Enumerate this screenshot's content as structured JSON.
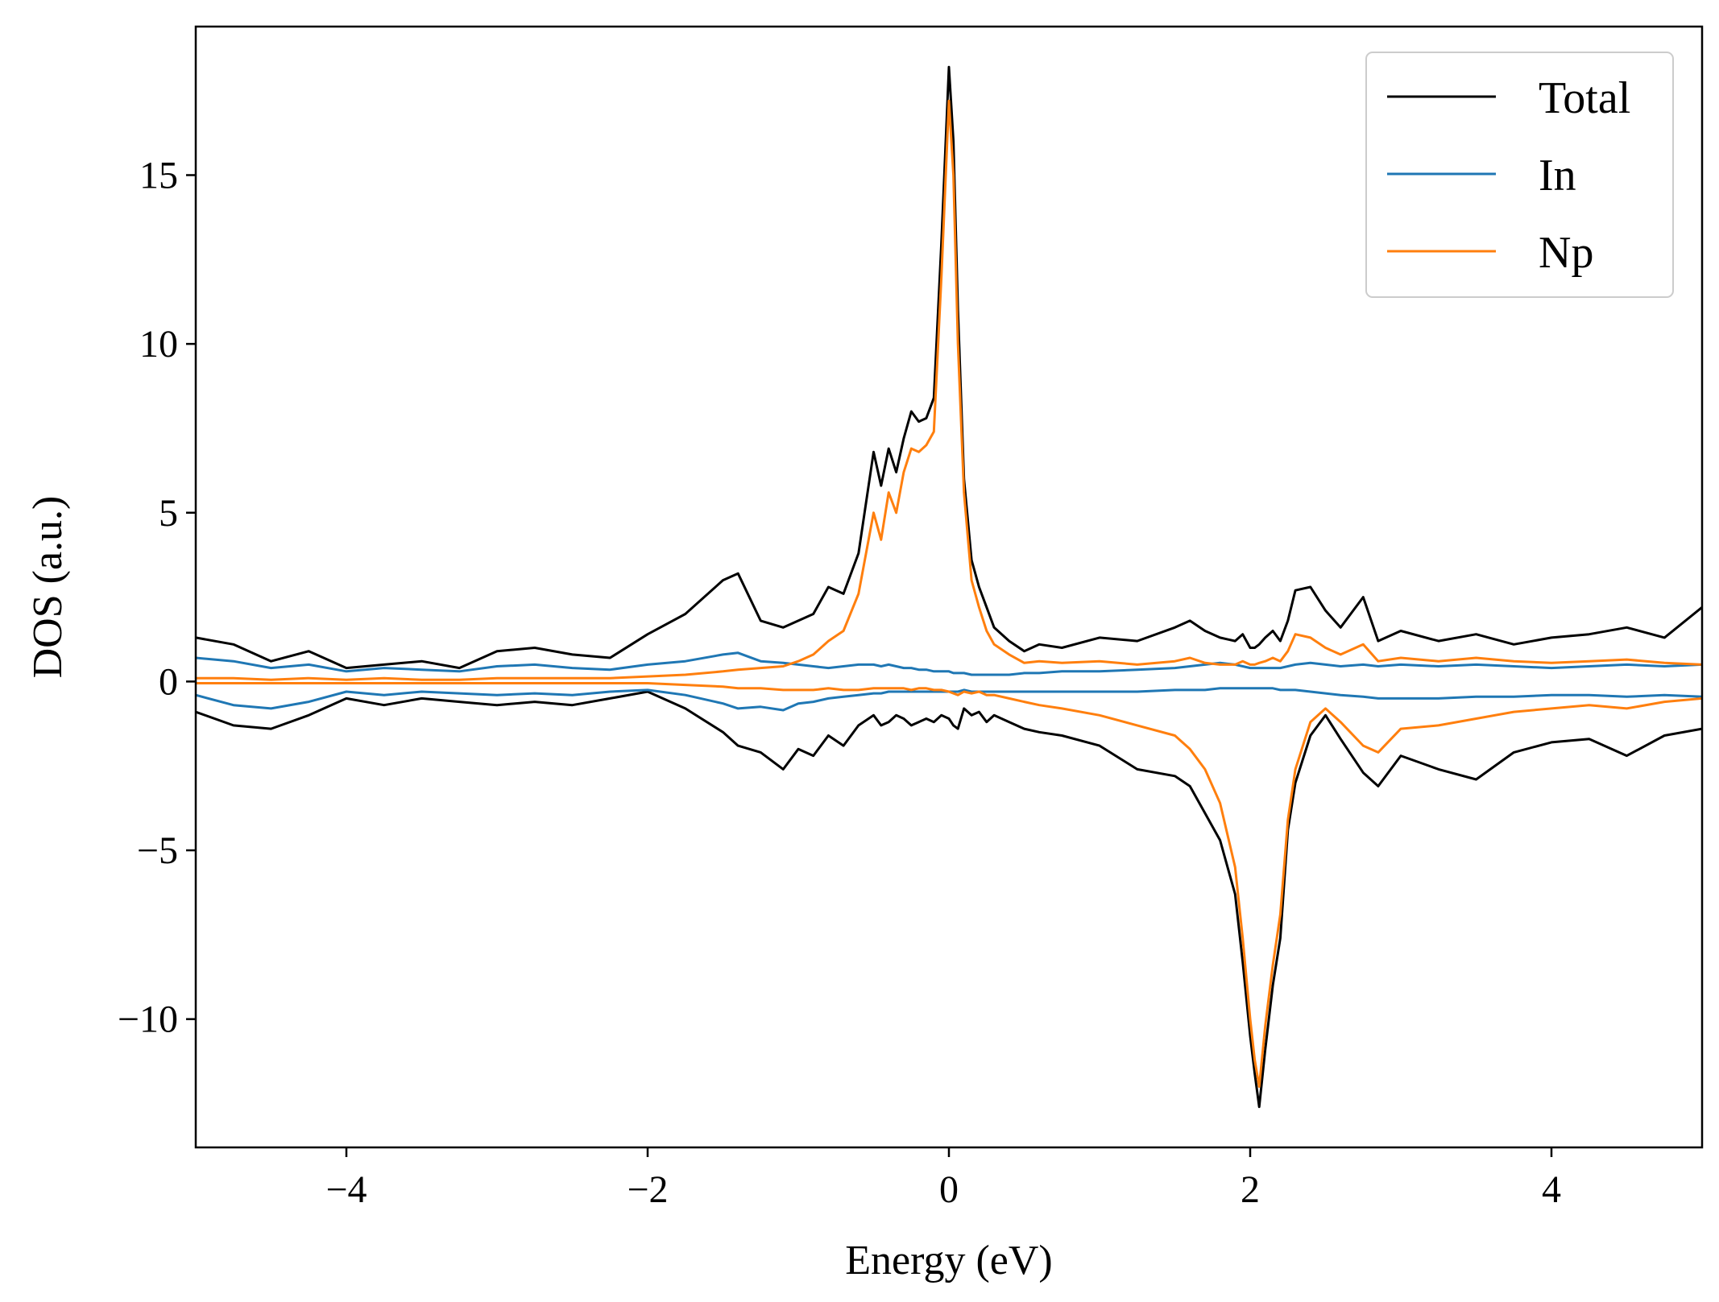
{
  "chart_data": {
    "type": "line",
    "title": "",
    "xlabel": "Energy (eV)",
    "ylabel": "DOS (a.u.)",
    "xlim": [
      -5,
      5
    ],
    "ylim": [
      -13.8,
      19.4
    ],
    "xticks": [
      {
        "value": -4,
        "label": "−4"
      },
      {
        "value": -2,
        "label": "−2"
      },
      {
        "value": 0,
        "label": "0"
      },
      {
        "value": 2,
        "label": "2"
      },
      {
        "value": 4,
        "label": "4"
      }
    ],
    "yticks": [
      {
        "value": -10,
        "label": "−10"
      },
      {
        "value": -5,
        "label": "−5"
      },
      {
        "value": 0,
        "label": "0"
      },
      {
        "value": 5,
        "label": "5"
      },
      {
        "value": 10,
        "label": "10"
      },
      {
        "value": 15,
        "label": "15"
      }
    ],
    "grid": false,
    "legend_position": "top-right",
    "x": [
      -5.0,
      -4.75,
      -4.5,
      -4.25,
      -4.0,
      -3.75,
      -3.5,
      -3.25,
      -3.0,
      -2.75,
      -2.5,
      -2.25,
      -2.0,
      -1.75,
      -1.5,
      -1.4,
      -1.25,
      -1.1,
      -1.0,
      -0.9,
      -0.8,
      -0.7,
      -0.6,
      -0.5,
      -0.45,
      -0.4,
      -0.35,
      -0.3,
      -0.25,
      -0.2,
      -0.15,
      -0.1,
      -0.05,
      0.0,
      0.03,
      0.06,
      0.1,
      0.15,
      0.2,
      0.25,
      0.3,
      0.4,
      0.5,
      0.6,
      0.75,
      1.0,
      1.25,
      1.5,
      1.6,
      1.7,
      1.8,
      1.9,
      1.95,
      2.0,
      2.03,
      2.06,
      2.1,
      2.15,
      2.2,
      2.25,
      2.3,
      2.4,
      2.5,
      2.6,
      2.75,
      2.85,
      3.0,
      3.25,
      3.5,
      3.75,
      4.0,
      4.25,
      4.5,
      4.75,
      5.0
    ],
    "series": [
      {
        "name": "Total",
        "color": "#000000",
        "up": [
          1.3,
          1.1,
          0.6,
          0.9,
          0.4,
          0.5,
          0.6,
          0.4,
          0.9,
          1.0,
          0.8,
          0.7,
          1.4,
          2.0,
          3.0,
          3.2,
          1.8,
          1.6,
          1.8,
          2.0,
          2.8,
          2.6,
          3.8,
          6.8,
          5.8,
          6.9,
          6.2,
          7.2,
          8.0,
          7.7,
          7.8,
          8.4,
          13.0,
          18.2,
          16.0,
          11.0,
          6.0,
          3.6,
          2.8,
          2.2,
          1.6,
          1.2,
          0.9,
          1.1,
          1.0,
          1.3,
          1.2,
          1.6,
          1.8,
          1.5,
          1.3,
          1.2,
          1.4,
          1.0,
          1.0,
          1.1,
          1.3,
          1.5,
          1.2,
          1.8,
          2.7,
          2.8,
          2.1,
          1.6,
          2.5,
          1.2,
          1.5,
          1.2,
          1.4,
          1.1,
          1.3,
          1.4,
          1.6,
          1.3,
          2.2
        ],
        "down": [
          -0.9,
          -1.3,
          -1.4,
          -1.0,
          -0.5,
          -0.7,
          -0.5,
          -0.6,
          -0.7,
          -0.6,
          -0.7,
          -0.5,
          -0.3,
          -0.8,
          -1.5,
          -1.9,
          -2.1,
          -2.6,
          -2.0,
          -2.2,
          -1.6,
          -1.9,
          -1.3,
          -1.0,
          -1.3,
          -1.2,
          -1.0,
          -1.1,
          -1.3,
          -1.2,
          -1.1,
          -1.2,
          -1.0,
          -1.1,
          -1.3,
          -1.4,
          -0.8,
          -1.0,
          -0.9,
          -1.2,
          -1.0,
          -1.2,
          -1.4,
          -1.5,
          -1.6,
          -1.9,
          -2.6,
          -2.8,
          -3.1,
          -3.9,
          -4.7,
          -6.3,
          -8.3,
          -10.5,
          -11.6,
          -12.6,
          -10.9,
          -9.0,
          -7.6,
          -4.4,
          -3.0,
          -1.6,
          -1.0,
          -1.7,
          -2.7,
          -3.1,
          -2.2,
          -2.6,
          -2.9,
          -2.1,
          -1.8,
          -1.7,
          -2.2,
          -1.6,
          -1.4
        ]
      },
      {
        "name": "In",
        "color": "#1f77b4",
        "up": [
          0.7,
          0.6,
          0.4,
          0.5,
          0.3,
          0.4,
          0.35,
          0.3,
          0.45,
          0.5,
          0.4,
          0.35,
          0.5,
          0.6,
          0.8,
          0.85,
          0.6,
          0.55,
          0.5,
          0.45,
          0.4,
          0.45,
          0.5,
          0.5,
          0.45,
          0.5,
          0.45,
          0.4,
          0.4,
          0.35,
          0.35,
          0.3,
          0.3,
          0.3,
          0.25,
          0.25,
          0.25,
          0.2,
          0.2,
          0.2,
          0.2,
          0.2,
          0.25,
          0.25,
          0.3,
          0.3,
          0.35,
          0.4,
          0.45,
          0.5,
          0.55,
          0.5,
          0.45,
          0.4,
          0.4,
          0.4,
          0.4,
          0.4,
          0.4,
          0.45,
          0.5,
          0.55,
          0.5,
          0.45,
          0.5,
          0.45,
          0.5,
          0.45,
          0.5,
          0.45,
          0.4,
          0.45,
          0.5,
          0.45,
          0.5
        ],
        "down": [
          -0.4,
          -0.7,
          -0.8,
          -0.6,
          -0.3,
          -0.4,
          -0.3,
          -0.35,
          -0.4,
          -0.35,
          -0.4,
          -0.3,
          -0.25,
          -0.4,
          -0.65,
          -0.8,
          -0.75,
          -0.85,
          -0.65,
          -0.6,
          -0.5,
          -0.45,
          -0.4,
          -0.35,
          -0.35,
          -0.3,
          -0.3,
          -0.3,
          -0.3,
          -0.3,
          -0.3,
          -0.3,
          -0.3,
          -0.3,
          -0.3,
          -0.3,
          -0.25,
          -0.3,
          -0.3,
          -0.3,
          -0.3,
          -0.3,
          -0.3,
          -0.3,
          -0.3,
          -0.3,
          -0.3,
          -0.25,
          -0.25,
          -0.25,
          -0.2,
          -0.2,
          -0.2,
          -0.2,
          -0.2,
          -0.2,
          -0.2,
          -0.2,
          -0.25,
          -0.25,
          -0.25,
          -0.3,
          -0.35,
          -0.4,
          -0.45,
          -0.5,
          -0.5,
          -0.5,
          -0.45,
          -0.45,
          -0.4,
          -0.4,
          -0.45,
          -0.4,
          -0.45
        ]
      },
      {
        "name": "Np",
        "color": "#ff7f0e",
        "up": [
          0.1,
          0.1,
          0.05,
          0.1,
          0.05,
          0.1,
          0.05,
          0.05,
          0.1,
          0.1,
          0.1,
          0.1,
          0.15,
          0.2,
          0.3,
          0.35,
          0.4,
          0.45,
          0.6,
          0.8,
          1.2,
          1.5,
          2.6,
          5.0,
          4.2,
          5.6,
          5.0,
          6.2,
          6.9,
          6.8,
          7.0,
          7.4,
          12.0,
          17.2,
          15.0,
          10.0,
          5.6,
          3.0,
          2.2,
          1.5,
          1.1,
          0.8,
          0.55,
          0.6,
          0.55,
          0.6,
          0.5,
          0.6,
          0.7,
          0.55,
          0.5,
          0.5,
          0.6,
          0.5,
          0.5,
          0.55,
          0.6,
          0.7,
          0.6,
          0.9,
          1.4,
          1.3,
          1.0,
          0.8,
          1.1,
          0.6,
          0.7,
          0.6,
          0.7,
          0.6,
          0.55,
          0.6,
          0.65,
          0.55,
          0.5
        ],
        "down": [
          -0.05,
          -0.05,
          -0.05,
          -0.05,
          -0.05,
          -0.05,
          -0.05,
          -0.05,
          -0.05,
          -0.05,
          -0.05,
          -0.05,
          -0.05,
          -0.1,
          -0.15,
          -0.2,
          -0.2,
          -0.25,
          -0.25,
          -0.25,
          -0.2,
          -0.25,
          -0.25,
          -0.2,
          -0.2,
          -0.2,
          -0.2,
          -0.2,
          -0.25,
          -0.2,
          -0.2,
          -0.25,
          -0.25,
          -0.3,
          -0.35,
          -0.4,
          -0.3,
          -0.35,
          -0.3,
          -0.4,
          -0.4,
          -0.5,
          -0.6,
          -0.7,
          -0.8,
          -1.0,
          -1.3,
          -1.6,
          -2.0,
          -2.6,
          -3.6,
          -5.5,
          -7.6,
          -10.0,
          -11.2,
          -12.0,
          -10.2,
          -8.4,
          -6.9,
          -4.1,
          -2.6,
          -1.2,
          -0.8,
          -1.2,
          -1.9,
          -2.1,
          -1.4,
          -1.3,
          -1.1,
          -0.9,
          -0.8,
          -0.7,
          -0.8,
          -0.6,
          -0.5
        ]
      }
    ]
  }
}
